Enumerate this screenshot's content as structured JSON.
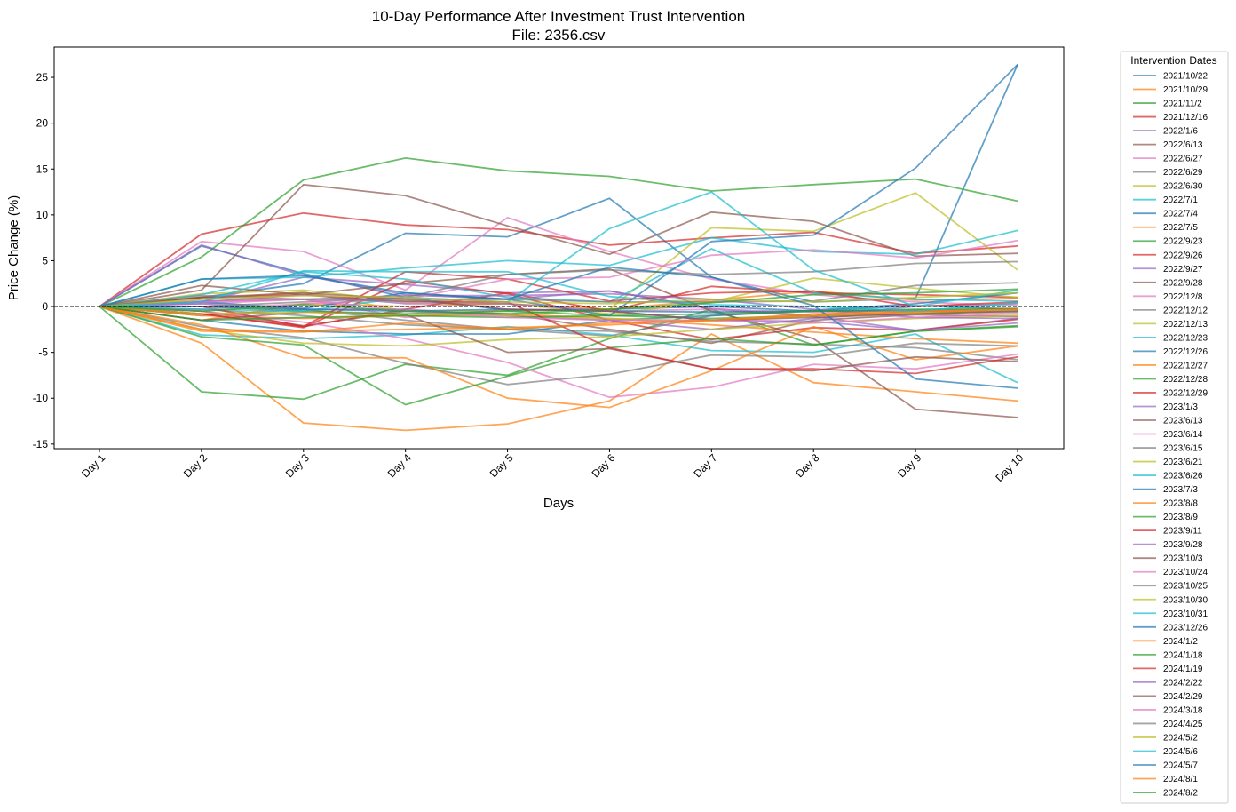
{
  "chart_data": {
    "type": "line",
    "title": "10-Day Performance After Investment Trust Intervention",
    "subtitle": "File: 2356.csv",
    "xlabel": "Days",
    "ylabel": "Price Change (%)",
    "categories": [
      "Day 1",
      "Day 2",
      "Day 3",
      "Day 4",
      "Day 5",
      "Day 6",
      "Day 7",
      "Day 8",
      "Day 9",
      "Day 10"
    ],
    "ylim": [
      -15.5,
      28.3
    ],
    "yticks": [
      -15,
      -10,
      -5,
      0,
      5,
      10,
      15,
      20,
      25
    ],
    "grid": false,
    "zero_line": true,
    "legend_title": "Intervention Dates",
    "legend_position": "outside-right",
    "colors": [
      "#1f77b4",
      "#ff7f0e",
      "#2ca02c",
      "#d62728",
      "#9467bd",
      "#8c564b",
      "#e377c2",
      "#7f7f7f",
      "#bcbd22",
      "#17becf"
    ],
    "series": [
      {
        "name": "2021/10/22",
        "values": [
          0,
          1.0,
          2.5,
          8.0,
          7.6,
          11.8,
          3.2,
          0.5,
          0.9,
          26.4
        ]
      },
      {
        "name": "2021/10/29",
        "values": [
          0,
          -4.0,
          -12.7,
          -13.5,
          -12.8,
          -10.3,
          -3.0,
          -8.3,
          -9.3,
          -10.3
        ]
      },
      {
        "name": "2021/11/2",
        "values": [
          0,
          -9.3,
          -10.1,
          -6.3,
          -7.5,
          -3.5,
          -0.3,
          -4.2,
          -2.7,
          -2.2
        ]
      },
      {
        "name": "2021/12/16",
        "values": [
          0,
          7.9,
          10.2,
          8.9,
          8.4,
          6.7,
          7.5,
          8.1,
          5.8,
          6.6
        ]
      },
      {
        "name": "2022/1/6",
        "values": [
          0,
          0.5,
          3.2,
          2.4,
          1.5,
          1.7,
          -0.2,
          -1.0,
          0.0,
          0.3
        ]
      },
      {
        "name": "2022/6/13",
        "values": [
          0,
          -0.5,
          -2.1,
          -0.5,
          -0.8,
          -2.5,
          -4.0,
          -1.5,
          -0.9,
          -1.1
        ]
      },
      {
        "name": "2022/6/27",
        "values": [
          0,
          7.1,
          6.0,
          1.8,
          9.7,
          6.0,
          3.0,
          1.3,
          0.5,
          0.1
        ]
      },
      {
        "name": "2022/6/29",
        "values": [
          0,
          -1.0,
          -0.3,
          -1.5,
          -2.5,
          -3.2,
          -1.0,
          -0.5,
          -0.5,
          -0.6
        ]
      },
      {
        "name": "2022/6/30",
        "values": [
          0,
          0.8,
          1.6,
          -0.5,
          -0.5,
          -0.3,
          8.6,
          8.2,
          12.4,
          4.0
        ]
      },
      {
        "name": "2022/7/1",
        "values": [
          0,
          -3.1,
          -3.5,
          -3.1,
          -2.2,
          -3.1,
          -4.8,
          -5.0,
          -3.0,
          -8.3
        ]
      },
      {
        "name": "2022/7/4",
        "values": [
          0,
          6.6,
          3.6,
          1.0,
          -0.4,
          -0.3,
          0.0,
          -0.5,
          0.1,
          -0.3
        ]
      },
      {
        "name": "2022/7/5",
        "values": [
          0,
          -1.5,
          0.3,
          0.0,
          0.3,
          -0.3,
          0.7,
          1.7,
          0.7,
          0.9
        ]
      },
      {
        "name": "2022/9/23",
        "values": [
          0,
          5.4,
          13.8,
          16.2,
          14.8,
          14.2,
          12.6,
          13.3,
          13.9,
          11.5
        ]
      },
      {
        "name": "2022/9/26",
        "values": [
          0,
          -0.8,
          -2.2,
          -0.3,
          1.5,
          -0.5,
          2.2,
          1.5,
          1.3,
          1.0
        ]
      },
      {
        "name": "2022/9/27",
        "values": [
          0,
          6.7,
          3.4,
          1.3,
          0.8,
          1.7,
          -0.3,
          -1.1,
          -2.6,
          -1.3
        ]
      },
      {
        "name": "2022/9/28",
        "values": [
          0,
          1.8,
          13.3,
          12.1,
          8.8,
          5.7,
          10.3,
          9.3,
          5.5,
          5.8
        ]
      },
      {
        "name": "2022/12/8",
        "values": [
          0,
          0.3,
          0.8,
          -1.2,
          -0.3,
          -0.5,
          -0.3,
          -0.6,
          -0.5,
          -0.8
        ]
      },
      {
        "name": "2022/12/12",
        "values": [
          0,
          -0.3,
          -1.0,
          -2.0,
          -2.5,
          -2.7,
          -3.8,
          -4.1,
          -4.5,
          -5.8
        ]
      },
      {
        "name": "2022/12/13",
        "values": [
          0,
          1.4,
          1.8,
          0.6,
          0.3,
          -0.8,
          0.5,
          3.1,
          2.0,
          1.0
        ]
      },
      {
        "name": "2022/12/23",
        "values": [
          0,
          3.0,
          3.2,
          4.2,
          5.0,
          4.5,
          7.5,
          6.0,
          5.7,
          8.3
        ]
      },
      {
        "name": "2022/12/26",
        "values": [
          0,
          -1.5,
          -2.7,
          -3.0,
          -3.0,
          -1.5,
          -1.0,
          -0.4,
          0.3,
          1.5
        ]
      },
      {
        "name": "2022/12/27",
        "values": [
          0,
          -1.0,
          -1.3,
          -1.0,
          -0.8,
          -1.3,
          -2.0,
          -2.8,
          -3.5,
          -4.0
        ]
      },
      {
        "name": "2022/12/28",
        "values": [
          0,
          0.0,
          -0.5,
          -0.8,
          -0.5,
          -1.0,
          -1.3,
          -1.0,
          -0.8,
          -0.5
        ]
      },
      {
        "name": "2022/12/29",
        "values": [
          0,
          -0.8,
          -2.3,
          2.8,
          1.4,
          -1.5,
          -3.6,
          -2.3,
          -2.6,
          -1.4
        ]
      },
      {
        "name": "2023/1/3",
        "values": [
          0,
          0.3,
          -0.3,
          -0.3,
          -1.0,
          -1.5,
          -2.5,
          -1.3,
          -0.5,
          -0.5
        ]
      },
      {
        "name": "2023/6/13",
        "values": [
          0,
          2.3,
          1.3,
          2.5,
          3.5,
          4.1,
          -0.5,
          -3.5,
          -11.2,
          -12.1
        ]
      },
      {
        "name": "2023/6/14",
        "values": [
          0,
          -0.5,
          -1.7,
          -3.5,
          -6.1,
          -9.9,
          -8.8,
          -6.3,
          -6.8,
          -5.2
        ]
      },
      {
        "name": "2023/6/15",
        "values": [
          0,
          -2.2,
          -3.4,
          -6.2,
          -8.5,
          -7.4,
          -5.3,
          -5.5,
          -4.0,
          -4.3
        ]
      },
      {
        "name": "2023/6/21",
        "values": [
          0,
          -2.5,
          -4.0,
          -4.3,
          -3.6,
          -3.3,
          -2.5,
          -1.8,
          -1.3,
          -1.0
        ]
      },
      {
        "name": "2023/6/26",
        "values": [
          0,
          1.3,
          3.8,
          3.0,
          1.0,
          0.5,
          6.3,
          1.5,
          0.8,
          0.6
        ]
      },
      {
        "name": "2023/7/3",
        "values": [
          0,
          0.5,
          -0.2,
          1.5,
          0.8,
          -1.0,
          7.1,
          7.8,
          15.1,
          26.4
        ]
      },
      {
        "name": "2023/8/8",
        "values": [
          0,
          -2.0,
          -5.6,
          -5.6,
          -10.0,
          -11.0,
          -7.0,
          -2.2,
          -5.8,
          -4.3
        ]
      },
      {
        "name": "2023/8/9",
        "values": [
          0,
          -3.3,
          -4.2,
          -10.7,
          -7.6,
          -4.5,
          -3.5,
          -4.2,
          -2.7,
          -2.1
        ]
      },
      {
        "name": "2023/9/11",
        "values": [
          0,
          0.0,
          -2.2,
          3.8,
          3.0,
          0.6,
          1.5,
          1.7,
          0.0,
          0.5
        ]
      },
      {
        "name": "2023/9/28",
        "values": [
          0,
          0.6,
          0.8,
          1.2,
          1.2,
          1.4,
          0.8,
          -0.3,
          -1.2,
          -1.3
        ]
      },
      {
        "name": "2023/10/3",
        "values": [
          0,
          -1.5,
          -0.6,
          -0.9,
          -5.0,
          -4.6,
          -6.8,
          -7.0,
          -5.5,
          -6.0
        ]
      },
      {
        "name": "2023/10/24",
        "values": [
          0,
          -0.3,
          0.3,
          0.8,
          3.0,
          3.2,
          5.6,
          6.2,
          5.3,
          7.2
        ]
      },
      {
        "name": "2023/10/25",
        "values": [
          0,
          0.0,
          0.5,
          1.0,
          3.5,
          4.0,
          3.5,
          3.8,
          4.7,
          4.9
        ]
      },
      {
        "name": "2023/10/30",
        "values": [
          0,
          -0.8,
          -0.6,
          -1.0,
          -1.0,
          -1.3,
          -1.6,
          -1.0,
          -0.7,
          -0.5
        ]
      },
      {
        "name": "2023/10/31",
        "values": [
          0,
          -0.3,
          -0.5,
          1.0,
          0.5,
          8.5,
          12.5,
          4.0,
          0.0,
          1.8
        ]
      },
      {
        "name": "2023/12/26",
        "values": [
          0,
          0.0,
          -0.3,
          -0.5,
          -0.3,
          -0.5,
          -0.6,
          -0.5,
          -0.4,
          -0.3
        ]
      },
      {
        "name": "2024/1/2",
        "values": [
          0,
          -2.7,
          -2.8,
          -1.8,
          -2.5,
          -1.8,
          -1.5,
          -0.8,
          -0.5,
          -0.3
        ]
      },
      {
        "name": "2024/1/18",
        "values": [
          0,
          -1.5,
          -1.2,
          -1.0,
          -1.2,
          -1.0,
          -0.8,
          -0.5,
          -0.3,
          -0.2
        ]
      },
      {
        "name": "2024/1/19",
        "values": [
          0,
          1.0,
          1.3,
          0.5,
          0.5,
          -4.5,
          -6.8,
          -6.8,
          -7.3,
          -5.5
        ]
      },
      {
        "name": "2024/2/22",
        "values": [
          0,
          0.5,
          1.3,
          0.3,
          0.3,
          -0.5,
          -1.5,
          -1.6,
          -2.6,
          -1.8
        ]
      },
      {
        "name": "2024/2/29",
        "values": [
          0,
          1.0,
          1.5,
          0.8,
          -0.3,
          -0.5,
          -1.5,
          -1.2,
          -0.8,
          -0.5
        ]
      },
      {
        "name": "2024/3/18",
        "values": [
          0,
          0.5,
          0.8,
          -0.5,
          -1.2,
          -1.5,
          -1.5,
          -1.8,
          -1.2,
          -0.8
        ]
      },
      {
        "name": "2024/4/25",
        "values": [
          0,
          1.2,
          0.8,
          0.6,
          0.8,
          0.5,
          0.5,
          0.6,
          2.3,
          2.6
        ]
      },
      {
        "name": "2024/5/2",
        "values": [
          0,
          0.8,
          1.2,
          1.0,
          0.5,
          0.3,
          0.8,
          0.5,
          1.0,
          1.5
        ]
      },
      {
        "name": "2024/5/6",
        "values": [
          0,
          0.5,
          3.9,
          3.8,
          3.8,
          1.1,
          0.2,
          0.0,
          -0.5,
          0.4
        ]
      },
      {
        "name": "2024/5/7",
        "values": [
          0,
          3.0,
          3.4,
          1.5,
          0.8,
          4.3,
          3.2,
          0.1,
          -7.9,
          -8.9
        ]
      },
      {
        "name": "2024/8/1",
        "values": [
          0,
          -2.5,
          -2.7,
          -2.5,
          -2.3,
          -2.0,
          -1.5,
          -1.0,
          -0.6,
          -0.3
        ]
      },
      {
        "name": "2024/8/2",
        "values": [
          0,
          -0.5,
          0.2,
          -0.5,
          -0.8,
          -0.3,
          0.4,
          1.3,
          1.5,
          1.9
        ]
      }
    ]
  }
}
